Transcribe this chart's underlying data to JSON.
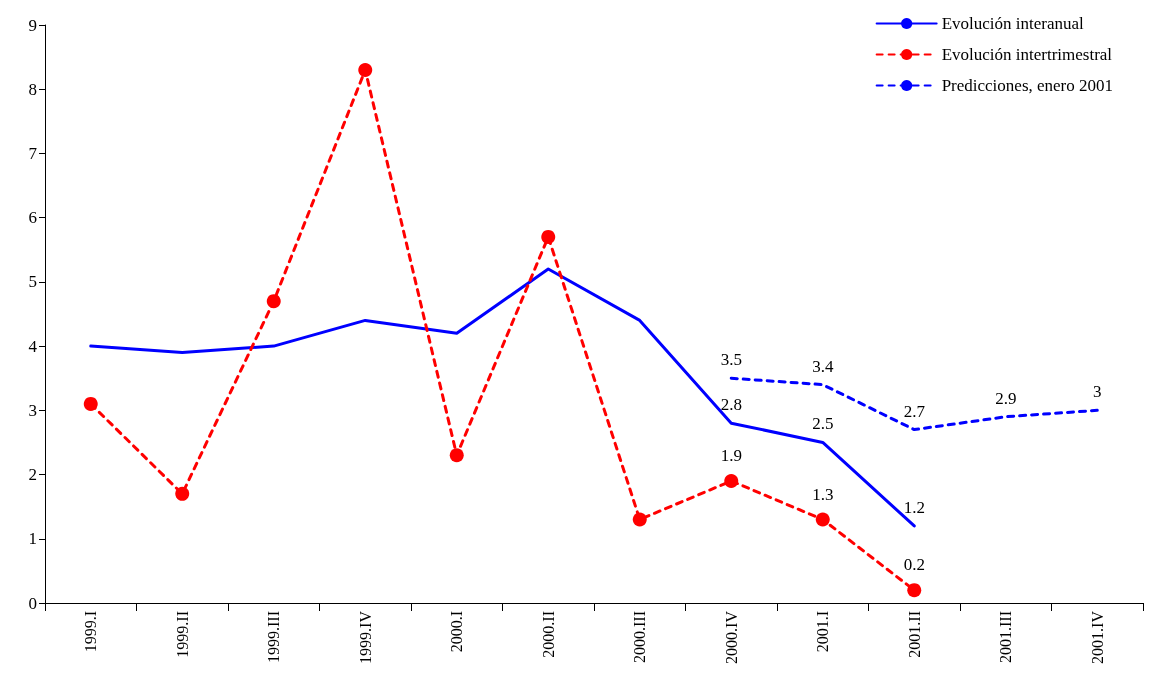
{
  "chart_data": {
    "type": "line",
    "categories": [
      "1999.I",
      "1999.II",
      "1999.III",
      "1999.IV",
      "2000.I",
      "2000.II",
      "2000.III",
      "2000.IV",
      "2001.I",
      "2001.II",
      "2001.III",
      "2001.IV"
    ],
    "series": [
      {
        "name": "Evolución interanual",
        "color": "#0000ff",
        "line_style": "solid",
        "marker": "none",
        "values": [
          4.0,
          3.9,
          4.0,
          4.4,
          4.2,
          5.2,
          4.4,
          2.8,
          2.5,
          1.2,
          null,
          null
        ],
        "value_labels": [
          null,
          null,
          null,
          null,
          null,
          null,
          null,
          "2.8",
          "2.5",
          "1.2",
          null,
          null
        ]
      },
      {
        "name": "Evolución intertrimestral",
        "color": "#ff0000",
        "line_style": "dashed",
        "marker": "circle",
        "values": [
          3.1,
          1.7,
          4.7,
          8.3,
          2.3,
          5.7,
          1.3,
          1.9,
          1.3,
          0.2,
          null,
          null
        ],
        "value_labels": [
          null,
          null,
          null,
          null,
          null,
          null,
          null,
          "1.9",
          "1.3",
          "0.2",
          null,
          null
        ]
      },
      {
        "name": "Predicciones, enero 2001",
        "color": "#0000ff",
        "line_style": "dashed",
        "marker": "none",
        "values": [
          null,
          null,
          null,
          null,
          null,
          null,
          null,
          3.5,
          3.4,
          2.7,
          2.9,
          3
        ],
        "value_labels": [
          null,
          null,
          null,
          null,
          null,
          null,
          null,
          "3.5",
          "3.4",
          "2.7",
          "2.9",
          "3"
        ]
      }
    ],
    "ylim": [
      0,
      9
    ],
    "yticks": [
      0,
      1,
      2,
      3,
      4,
      5,
      6,
      7,
      8,
      9
    ],
    "grid": false,
    "legend": "top right"
  }
}
